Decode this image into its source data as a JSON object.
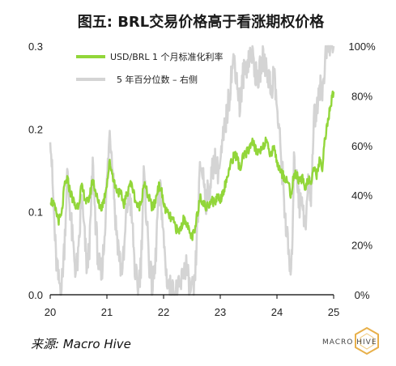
{
  "colors": {
    "usd_brl": "#92d63a",
    "percentile": "#d4d4d4",
    "axis": "#000000"
  },
  "chart_data": {
    "type": "line",
    "title": "图五: BRL交易价格高于看涨期权价格",
    "x_tick_labels": [
      "20",
      "21",
      "22",
      "23",
      "24",
      "25"
    ],
    "x_range": [
      2020,
      2025
    ],
    "y_left": {
      "range": [
        0,
        0.3
      ],
      "ticks": [
        0.0,
        0.1,
        0.2,
        0.3
      ],
      "tick_labels": [
        "0.0",
        "0.1",
        "0.2",
        "0.3"
      ]
    },
    "y_right": {
      "range": [
        0,
        100
      ],
      "ticks": [
        0,
        20,
        40,
        60,
        80,
        100
      ],
      "tick_labels": [
        "0%",
        "20%",
        "40%",
        "60%",
        "80%",
        "100%"
      ]
    },
    "legend_position": "top-left",
    "series": [
      {
        "name": "USD/BRL 1 个月标准化利率",
        "axis": "left",
        "x": [
          2020.0,
          2020.05,
          2020.1,
          2020.15,
          2020.2,
          2020.25,
          2020.3,
          2020.35,
          2020.4,
          2020.45,
          2020.5,
          2020.55,
          2020.6,
          2020.65,
          2020.7,
          2020.75,
          2020.8,
          2020.85,
          2020.9,
          2020.95,
          2021.0,
          2021.05,
          2021.1,
          2021.15,
          2021.2,
          2021.25,
          2021.3,
          2021.35,
          2021.4,
          2021.45,
          2021.5,
          2021.55,
          2021.6,
          2021.65,
          2021.7,
          2021.75,
          2021.8,
          2021.85,
          2021.9,
          2021.95,
          2022.0,
          2022.05,
          2022.1,
          2022.15,
          2022.2,
          2022.25,
          2022.3,
          2022.35,
          2022.4,
          2022.45,
          2022.5,
          2022.55,
          2022.6,
          2022.65,
          2022.7,
          2022.75,
          2022.8,
          2022.85,
          2022.9,
          2022.95,
          2023.0,
          2023.05,
          2023.1,
          2023.15,
          2023.2,
          2023.25,
          2023.3,
          2023.35,
          2023.4,
          2023.45,
          2023.5,
          2023.55,
          2023.6,
          2023.65,
          2023.7,
          2023.75,
          2023.8,
          2023.85,
          2023.9,
          2023.95,
          2024.0,
          2024.05,
          2024.1,
          2024.15,
          2024.2,
          2024.25,
          2024.3,
          2024.35,
          2024.4,
          2024.45,
          2024.5,
          2024.55,
          2024.6,
          2024.65,
          2024.7,
          2024.75,
          2024.8,
          2024.85,
          2024.9,
          2024.95,
          2025.0
        ],
        "values": [
          0.115,
          0.11,
          0.1,
          0.09,
          0.095,
          0.13,
          0.14,
          0.125,
          0.115,
          0.105,
          0.11,
          0.13,
          0.12,
          0.11,
          0.12,
          0.14,
          0.125,
          0.11,
          0.105,
          0.115,
          0.135,
          0.16,
          0.145,
          0.13,
          0.125,
          0.12,
          0.11,
          0.12,
          0.135,
          0.13,
          0.115,
          0.105,
          0.11,
          0.135,
          0.125,
          0.115,
          0.105,
          0.11,
          0.13,
          0.13,
          0.11,
          0.1,
          0.095,
          0.09,
          0.085,
          0.075,
          0.08,
          0.09,
          0.09,
          0.075,
          0.07,
          0.075,
          0.1,
          0.12,
          0.11,
          0.105,
          0.11,
          0.115,
          0.11,
          0.12,
          0.115,
          0.125,
          0.135,
          0.15,
          0.16,
          0.17,
          0.165,
          0.15,
          0.165,
          0.17,
          0.175,
          0.185,
          0.18,
          0.17,
          0.175,
          0.18,
          0.185,
          0.175,
          0.17,
          0.18,
          0.16,
          0.15,
          0.145,
          0.14,
          0.135,
          0.12,
          0.145,
          0.145,
          0.135,
          0.14,
          0.13,
          0.14,
          0.135,
          0.15,
          0.145,
          0.16,
          0.155,
          0.19,
          0.21,
          0.23,
          0.245
        ]
      },
      {
        "name": "5 年百分位数 – 右侧",
        "axis": "right",
        "x": [
          2020.0,
          2020.05,
          2020.1,
          2020.15,
          2020.2,
          2020.25,
          2020.3,
          2020.35,
          2020.4,
          2020.45,
          2020.5,
          2020.55,
          2020.6,
          2020.65,
          2020.7,
          2020.75,
          2020.8,
          2020.85,
          2020.9,
          2020.95,
          2021.0,
          2021.05,
          2021.1,
          2021.15,
          2021.2,
          2021.25,
          2021.3,
          2021.35,
          2021.4,
          2021.45,
          2021.5,
          2021.55,
          2021.6,
          2021.65,
          2021.7,
          2021.75,
          2021.8,
          2021.85,
          2021.9,
          2021.95,
          2022.0,
          2022.05,
          2022.1,
          2022.15,
          2022.2,
          2022.25,
          2022.3,
          2022.35,
          2022.4,
          2022.45,
          2022.5,
          2022.55,
          2022.6,
          2022.65,
          2022.7,
          2022.75,
          2022.8,
          2022.85,
          2022.9,
          2022.95,
          2023.0,
          2023.05,
          2023.1,
          2023.15,
          2023.2,
          2023.25,
          2023.3,
          2023.35,
          2023.4,
          2023.45,
          2023.5,
          2023.55,
          2023.6,
          2023.65,
          2023.7,
          2023.75,
          2023.8,
          2023.85,
          2023.9,
          2023.95,
          2024.0,
          2024.05,
          2024.1,
          2024.15,
          2024.2,
          2024.25,
          2024.3,
          2024.35,
          2024.4,
          2024.45,
          2024.5,
          2024.55,
          2024.6,
          2024.65,
          2024.7,
          2024.75,
          2024.8,
          2024.85,
          2024.9,
          2024.95,
          2025.0
        ],
        "values": [
          67,
          40,
          15,
          5,
          3,
          20,
          48,
          35,
          20,
          10,
          15,
          40,
          25,
          10,
          22,
          52,
          30,
          12,
          8,
          20,
          45,
          65,
          55,
          30,
          20,
          10,
          15,
          35,
          40,
          28,
          8,
          3,
          12,
          48,
          32,
          12,
          3,
          10,
          35,
          42,
          22,
          8,
          3,
          1,
          1,
          1,
          3,
          10,
          12,
          3,
          1,
          3,
          30,
          52,
          48,
          38,
          42,
          48,
          55,
          50,
          52,
          62,
          70,
          78,
          90,
          95,
          85,
          75,
          88,
          92,
          95,
          98,
          93,
          85,
          90,
          95,
          93,
          88,
          82,
          90,
          75,
          62,
          48,
          30,
          18,
          5,
          52,
          50,
          35,
          40,
          25,
          45,
          40,
          70,
          75,
          85,
          80,
          95,
          100,
          100,
          100
        ]
      }
    ]
  },
  "source": "来源: Macro Hive",
  "watermark": {
    "text": "MACRO HIVE"
  }
}
